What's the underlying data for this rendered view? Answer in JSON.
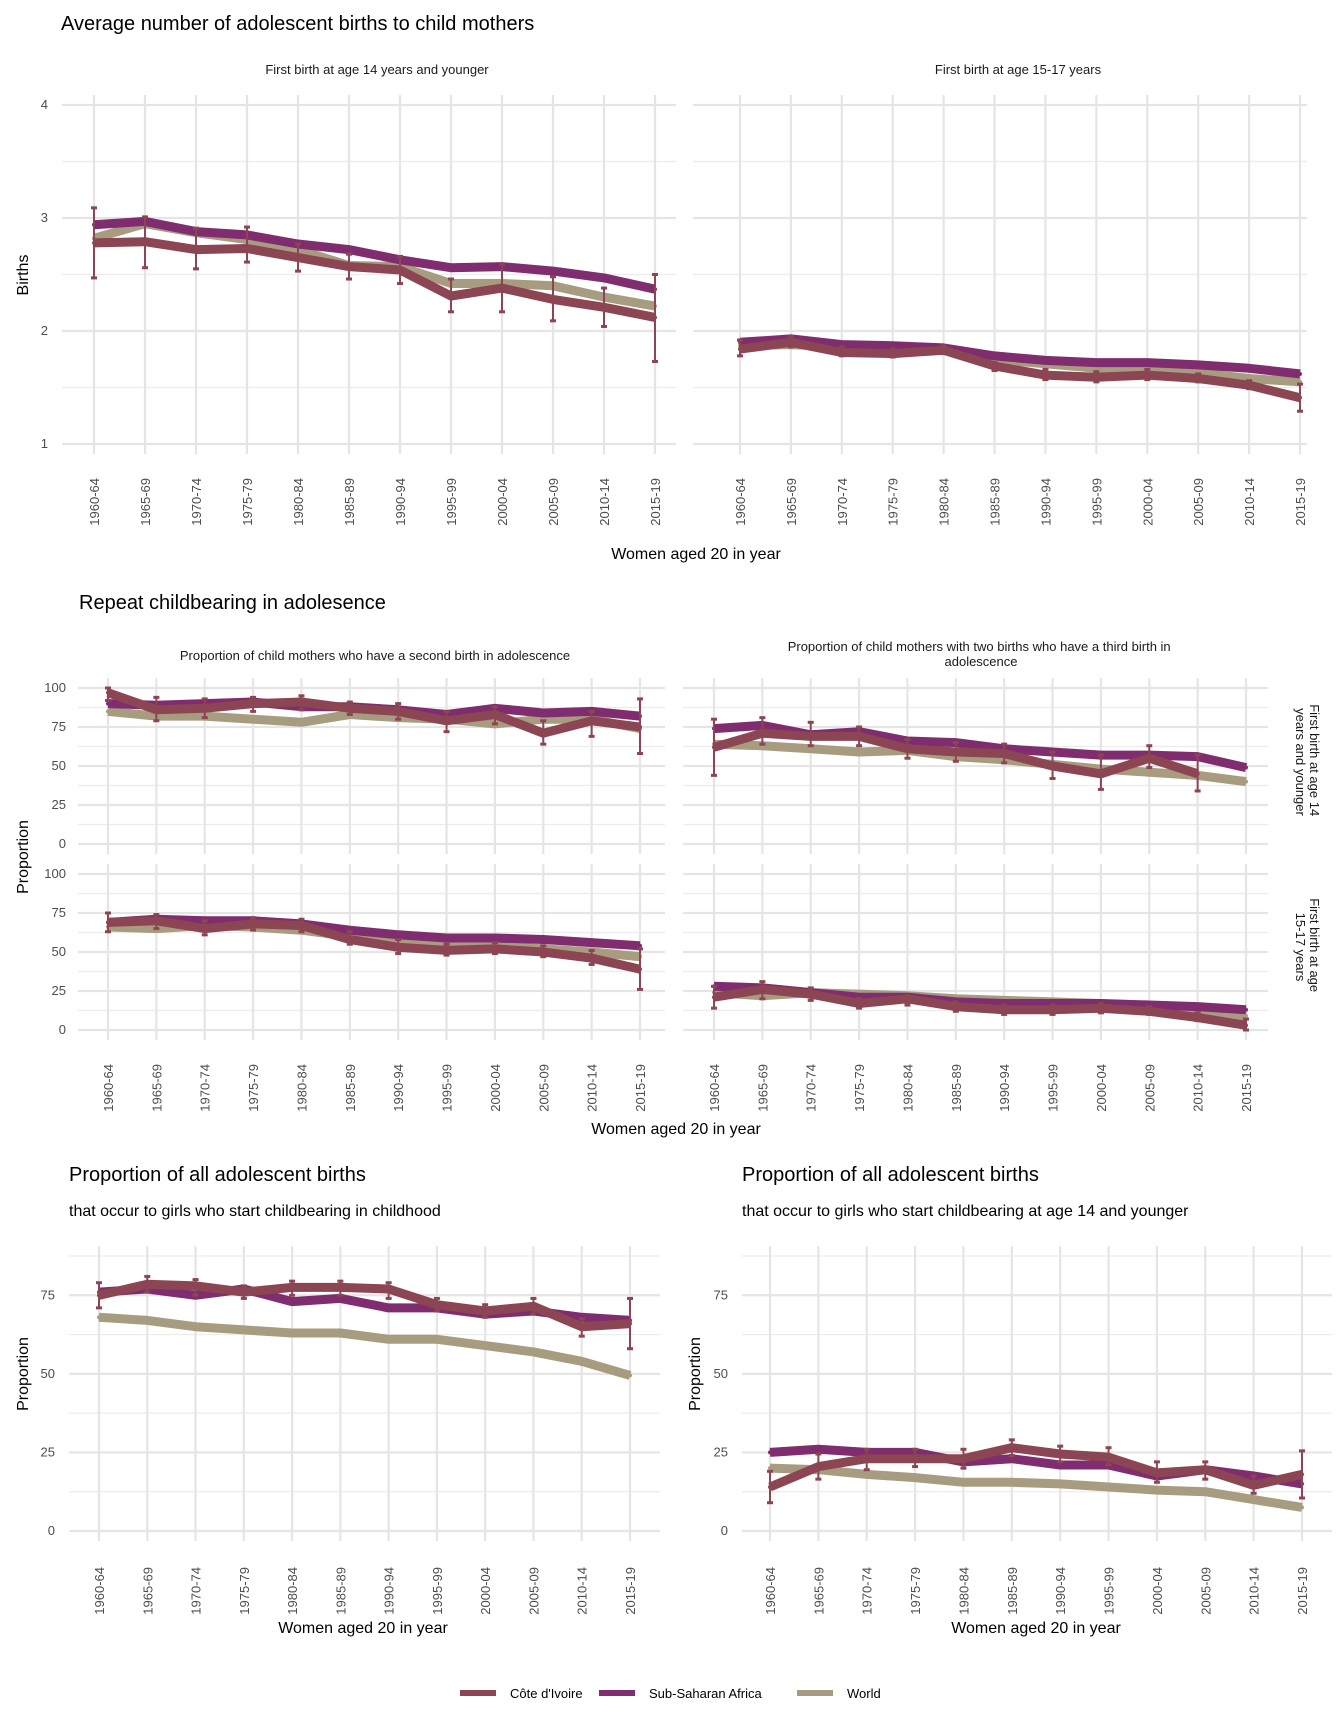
{
  "colors": {
    "cote_divoire": "#8B4553",
    "ssa": "#7F2D6E",
    "world": "#A89C80"
  },
  "sections": {
    "avg_births_title": "Average number of adolescent births to child mothers",
    "repeat_title": "Repeat childbearing in adolesence",
    "x_axis_title": "Women aged 20 in year",
    "births_ylabel": "Births",
    "proportion_ylabel": "Proportion"
  },
  "legend": {
    "items": [
      {
        "key": "cote_divoire",
        "label": "Côte d'Ivoire"
      },
      {
        "key": "ssa",
        "label": "Sub-Saharan Africa"
      },
      {
        "key": "world",
        "label": "World"
      }
    ]
  },
  "chart_data": [
    {
      "id": "births_14",
      "type": "line",
      "title": "Average number of adolescent births to child mothers",
      "facet": "First birth at age 14 years and younger",
      "xlabel": "Women aged 20 in year",
      "ylabel": "Births",
      "ylim": [
        1,
        4
      ],
      "yticks": [
        1,
        2,
        3,
        4
      ],
      "categories": [
        "1960-64",
        "1965-69",
        "1970-74",
        "1975-79",
        "1980-84",
        "1985-89",
        "1990-94",
        "1995-99",
        "2000-04",
        "2005-09",
        "2010-14",
        "2015-19"
      ],
      "series": [
        {
          "name": "World",
          "key": "world",
          "values": [
            2.82,
            2.95,
            2.87,
            2.81,
            2.72,
            2.58,
            2.57,
            2.42,
            2.42,
            2.4,
            2.3,
            2.22
          ]
        },
        {
          "name": "Sub-Saharan Africa",
          "key": "ssa",
          "values": [
            2.94,
            2.97,
            2.88,
            2.85,
            2.77,
            2.72,
            2.63,
            2.56,
            2.57,
            2.53,
            2.47,
            2.37
          ]
        },
        {
          "name": "Côte d'Ivoire",
          "key": "cote_divoire",
          "values": [
            2.78,
            2.79,
            2.72,
            2.73,
            2.65,
            2.57,
            2.54,
            2.31,
            2.38,
            2.28,
            2.21,
            2.12
          ],
          "err_low": [
            2.47,
            2.56,
            2.55,
            2.61,
            2.53,
            2.46,
            2.42,
            2.17,
            2.17,
            2.09,
            2.04,
            1.73
          ],
          "err_high": [
            3.09,
            3.01,
            2.91,
            2.92,
            2.77,
            2.68,
            2.66,
            2.46,
            2.59,
            2.48,
            2.38,
            2.5
          ]
        }
      ]
    },
    {
      "id": "births_15_17",
      "type": "line",
      "facet": "First birth at age 15-17 years",
      "ylim": [
        1,
        4
      ],
      "yticks": [
        1,
        2,
        3,
        4
      ],
      "categories": [
        "1960-64",
        "1965-69",
        "1970-74",
        "1975-79",
        "1980-84",
        "1985-89",
        "1990-94",
        "1995-99",
        "2000-04",
        "2005-09",
        "2010-14",
        "2015-19"
      ],
      "series": [
        {
          "name": "World",
          "key": "world",
          "values": [
            1.87,
            1.88,
            1.86,
            1.85,
            1.84,
            1.75,
            1.71,
            1.67,
            1.66,
            1.63,
            1.58,
            1.55
          ]
        },
        {
          "name": "Sub-Saharan Africa",
          "key": "ssa",
          "values": [
            1.9,
            1.93,
            1.88,
            1.87,
            1.85,
            1.78,
            1.74,
            1.72,
            1.72,
            1.7,
            1.67,
            1.62
          ]
        },
        {
          "name": "Côte d'Ivoire",
          "key": "cote_divoire",
          "values": [
            1.84,
            1.9,
            1.81,
            1.8,
            1.83,
            1.69,
            1.61,
            1.59,
            1.61,
            1.58,
            1.52,
            1.41
          ],
          "err_low": [
            1.78,
            1.86,
            1.78,
            1.77,
            1.8,
            1.65,
            1.57,
            1.55,
            1.57,
            1.55,
            1.49,
            1.29
          ],
          "err_high": [
            1.92,
            1.95,
            1.86,
            1.84,
            1.87,
            1.72,
            1.66,
            1.64,
            1.66,
            1.62,
            1.56,
            1.53
          ]
        }
      ]
    },
    {
      "id": "second_birth_14",
      "type": "line",
      "title": "Repeat childbearing in adolesence",
      "facet_col": "Proportion of child mothers who have a second birth in adolescence",
      "facet_row": "First birth at age 14 years and younger",
      "ylim": [
        0,
        100
      ],
      "yticks": [
        0,
        25,
        50,
        75,
        100
      ],
      "categories": [
        "1960-64",
        "1965-69",
        "1970-74",
        "1975-79",
        "1980-84",
        "1985-89",
        "1990-94",
        "1995-99",
        "2000-04",
        "2005-09",
        "2010-14",
        "2015-19"
      ],
      "series": [
        {
          "name": "World",
          "key": "world",
          "values": [
            85,
            82,
            82,
            80,
            78,
            83,
            81,
            80,
            77,
            80,
            80,
            74
          ]
        },
        {
          "name": "Sub-Saharan Africa",
          "key": "ssa",
          "values": [
            90,
            89,
            90,
            91,
            88,
            88,
            86,
            83,
            87,
            84,
            85,
            82
          ]
        },
        {
          "name": "Côte d'Ivoire",
          "key": "cote_divoire",
          "values": [
            97,
            86,
            87,
            90,
            91,
            87,
            85,
            79,
            83,
            71,
            79,
            75
          ],
          "err_low": [
            92,
            79,
            81,
            85,
            86,
            83,
            80,
            72,
            77,
            64,
            69,
            58
          ],
          "err_high": [
            100,
            94,
            93,
            94,
            95,
            91,
            90,
            85,
            88,
            79,
            85,
            93
          ]
        }
      ]
    },
    {
      "id": "third_birth_14",
      "type": "line",
      "facet_col": "Proportion of child mothers with two births who have a third birth in adolescence",
      "facet_row": "First birth at age 14 years and younger",
      "ylim": [
        0,
        100
      ],
      "yticks": [
        0,
        25,
        50,
        75,
        100
      ],
      "categories": [
        "1960-64",
        "1965-69",
        "1970-74",
        "1975-79",
        "1980-84",
        "1985-89",
        "1990-94",
        "1995-99",
        "2000-04",
        "2005-09",
        "2010-14",
        "2015-19"
      ],
      "series": [
        {
          "name": "World",
          "key": "world",
          "values": [
            64,
            63,
            61,
            59,
            60,
            56,
            54,
            51,
            48,
            46,
            44,
            40
          ]
        },
        {
          "name": "Sub-Saharan Africa",
          "key": "ssa",
          "values": [
            74,
            76,
            70,
            72,
            66,
            65,
            61,
            59,
            57,
            57,
            56,
            49
          ]
        },
        {
          "name": "Côte d'Ivoire",
          "key": "cote_divoire",
          "values": [
            62,
            71,
            69,
            69,
            61,
            59,
            58,
            50,
            45,
            55,
            45,
            null
          ],
          "err_low": [
            44,
            64,
            63,
            63,
            55,
            53,
            52,
            42,
            35,
            49,
            34,
            null
          ],
          "err_high": [
            80,
            81,
            78,
            75,
            67,
            65,
            64,
            59,
            57,
            63,
            57,
            null
          ]
        }
      ]
    },
    {
      "id": "second_birth_15_17",
      "type": "line",
      "facet_col": "Proportion of child mothers who have a second birth in adolescence",
      "facet_row": "First birth at age 15-17 years",
      "ylim": [
        0,
        100
      ],
      "yticks": [
        0,
        25,
        50,
        75,
        100
      ],
      "categories": [
        "1960-64",
        "1965-69",
        "1970-74",
        "1975-79",
        "1980-84",
        "1985-89",
        "1990-94",
        "1995-99",
        "2000-04",
        "2005-09",
        "2010-14",
        "2015-19"
      ],
      "series": [
        {
          "name": "World",
          "key": "world",
          "values": [
            66,
            65,
            67,
            66,
            64,
            60,
            56,
            56,
            54,
            52,
            50,
            47
          ]
        },
        {
          "name": "Sub-Saharan Africa",
          "key": "ssa",
          "values": [
            69,
            71,
            70,
            70,
            68,
            64,
            61,
            59,
            59,
            58,
            56,
            54
          ]
        },
        {
          "name": "Côte d'Ivoire",
          "key": "cote_divoire",
          "values": [
            69,
            70,
            65,
            68,
            67,
            58,
            53,
            51,
            52,
            50,
            46,
            39
          ],
          "err_low": [
            63,
            65,
            61,
            64,
            63,
            55,
            49,
            48,
            49,
            47,
            42,
            26
          ],
          "err_high": [
            75,
            74,
            70,
            72,
            71,
            63,
            58,
            55,
            56,
            54,
            51,
            52
          ]
        }
      ]
    },
    {
      "id": "third_birth_15_17",
      "type": "line",
      "facet_col": "Proportion of child mothers with two births who have a third birth in adolescence",
      "facet_row": "First birth at age 15-17 years",
      "ylim": [
        0,
        100
      ],
      "yticks": [
        0,
        25,
        50,
        75,
        100
      ],
      "categories": [
        "1960-64",
        "1965-69",
        "1970-74",
        "1975-79",
        "1980-84",
        "1985-89",
        "1990-94",
        "1995-99",
        "2000-04",
        "2005-09",
        "2010-14",
        "2015-19"
      ],
      "series": [
        {
          "name": "World",
          "key": "world",
          "values": [
            24,
            22,
            24,
            23,
            22,
            20,
            19,
            18,
            17,
            15,
            12,
            9
          ]
        },
        {
          "name": "Sub-Saharan Africa",
          "key": "ssa",
          "values": [
            28,
            27,
            24,
            21,
            21,
            18,
            17,
            17,
            17,
            16,
            15,
            13
          ]
        },
        {
          "name": "Côte d'Ivoire",
          "key": "cote_divoire",
          "values": [
            21,
            26,
            23,
            17,
            20,
            15,
            13,
            13,
            14,
            12,
            8,
            3
          ],
          "err_low": [
            14,
            20,
            19,
            14,
            16,
            12,
            10,
            10,
            11,
            10,
            6,
            0
          ],
          "err_high": [
            28,
            31,
            27,
            20,
            22,
            18,
            16,
            16,
            17,
            15,
            11,
            7
          ]
        }
      ]
    },
    {
      "id": "share_childhood",
      "type": "line",
      "title": "Proportion of all adolescent births",
      "subtitle": "that occur to girls who start childbearing in childhood",
      "xlabel": "Women aged 20 in year",
      "ylabel": "Proportion",
      "ylim": [
        0,
        87.5
      ],
      "yticks": [
        0,
        25,
        50,
        75
      ],
      "categories": [
        "1960-64",
        "1965-69",
        "1970-74",
        "1975-79",
        "1980-84",
        "1985-89",
        "1990-94",
        "1995-99",
        "2000-04",
        "2005-09",
        "2010-14",
        "2015-19"
      ],
      "series": [
        {
          "name": "World",
          "key": "world",
          "values": [
            68,
            67,
            65,
            64,
            63,
            63,
            61,
            61,
            59,
            57,
            54,
            49.5
          ]
        },
        {
          "name": "Sub-Saharan Africa",
          "key": "ssa",
          "values": [
            76,
            77,
            75,
            77,
            73,
            74,
            71,
            71,
            69,
            70,
            68,
            67
          ]
        },
        {
          "name": "Côte d'Ivoire",
          "key": "cote_divoire",
          "values": [
            75,
            78.5,
            78,
            76,
            77.5,
            77.5,
            77,
            72,
            70,
            71.5,
            65,
            66
          ],
          "err_low": [
            71,
            76,
            75,
            74,
            75,
            75,
            74,
            70,
            68,
            69,
            62,
            58
          ],
          "err_high": [
            79,
            81,
            80,
            78,
            79.5,
            79.5,
            79,
            74,
            72,
            74,
            67.5,
            74
          ]
        }
      ]
    },
    {
      "id": "share_14",
      "type": "line",
      "title": "Proportion of all adolescent births",
      "subtitle": "that occur to girls who start childbearing at age 14 and younger",
      "xlabel": "Women aged 20 in year",
      "ylabel": "Proportion",
      "ylim": [
        0,
        87.5
      ],
      "yticks": [
        0,
        25,
        50,
        75
      ],
      "categories": [
        "1960-64",
        "1965-69",
        "1970-74",
        "1975-79",
        "1980-84",
        "1985-89",
        "1990-94",
        "1995-99",
        "2000-04",
        "2005-09",
        "2010-14",
        "2015-19"
      ],
      "series": [
        {
          "name": "World",
          "key": "world",
          "values": [
            20,
            19.5,
            18,
            17,
            15.5,
            15.5,
            15,
            14,
            13,
            12.5,
            10,
            7.5
          ]
        },
        {
          "name": "Sub-Saharan Africa",
          "key": "ssa",
          "values": [
            25,
            26,
            25,
            25,
            22,
            23,
            21,
            21,
            17.5,
            19.5,
            17.5,
            15
          ]
        },
        {
          "name": "Côte d'Ivoire",
          "key": "cote_divoire",
          "values": [
            14,
            20.5,
            23,
            23,
            23,
            26.5,
            24.5,
            23.5,
            18.5,
            19.5,
            14.5,
            18
          ],
          "err_low": [
            9,
            16.5,
            19.5,
            20.5,
            20,
            24,
            22,
            21,
            15.5,
            16.5,
            12,
            10.5
          ],
          "err_high": [
            19,
            24.5,
            26,
            26,
            26,
            29,
            27,
            26.5,
            22,
            22,
            17.5,
            25.5
          ]
        }
      ]
    }
  ]
}
